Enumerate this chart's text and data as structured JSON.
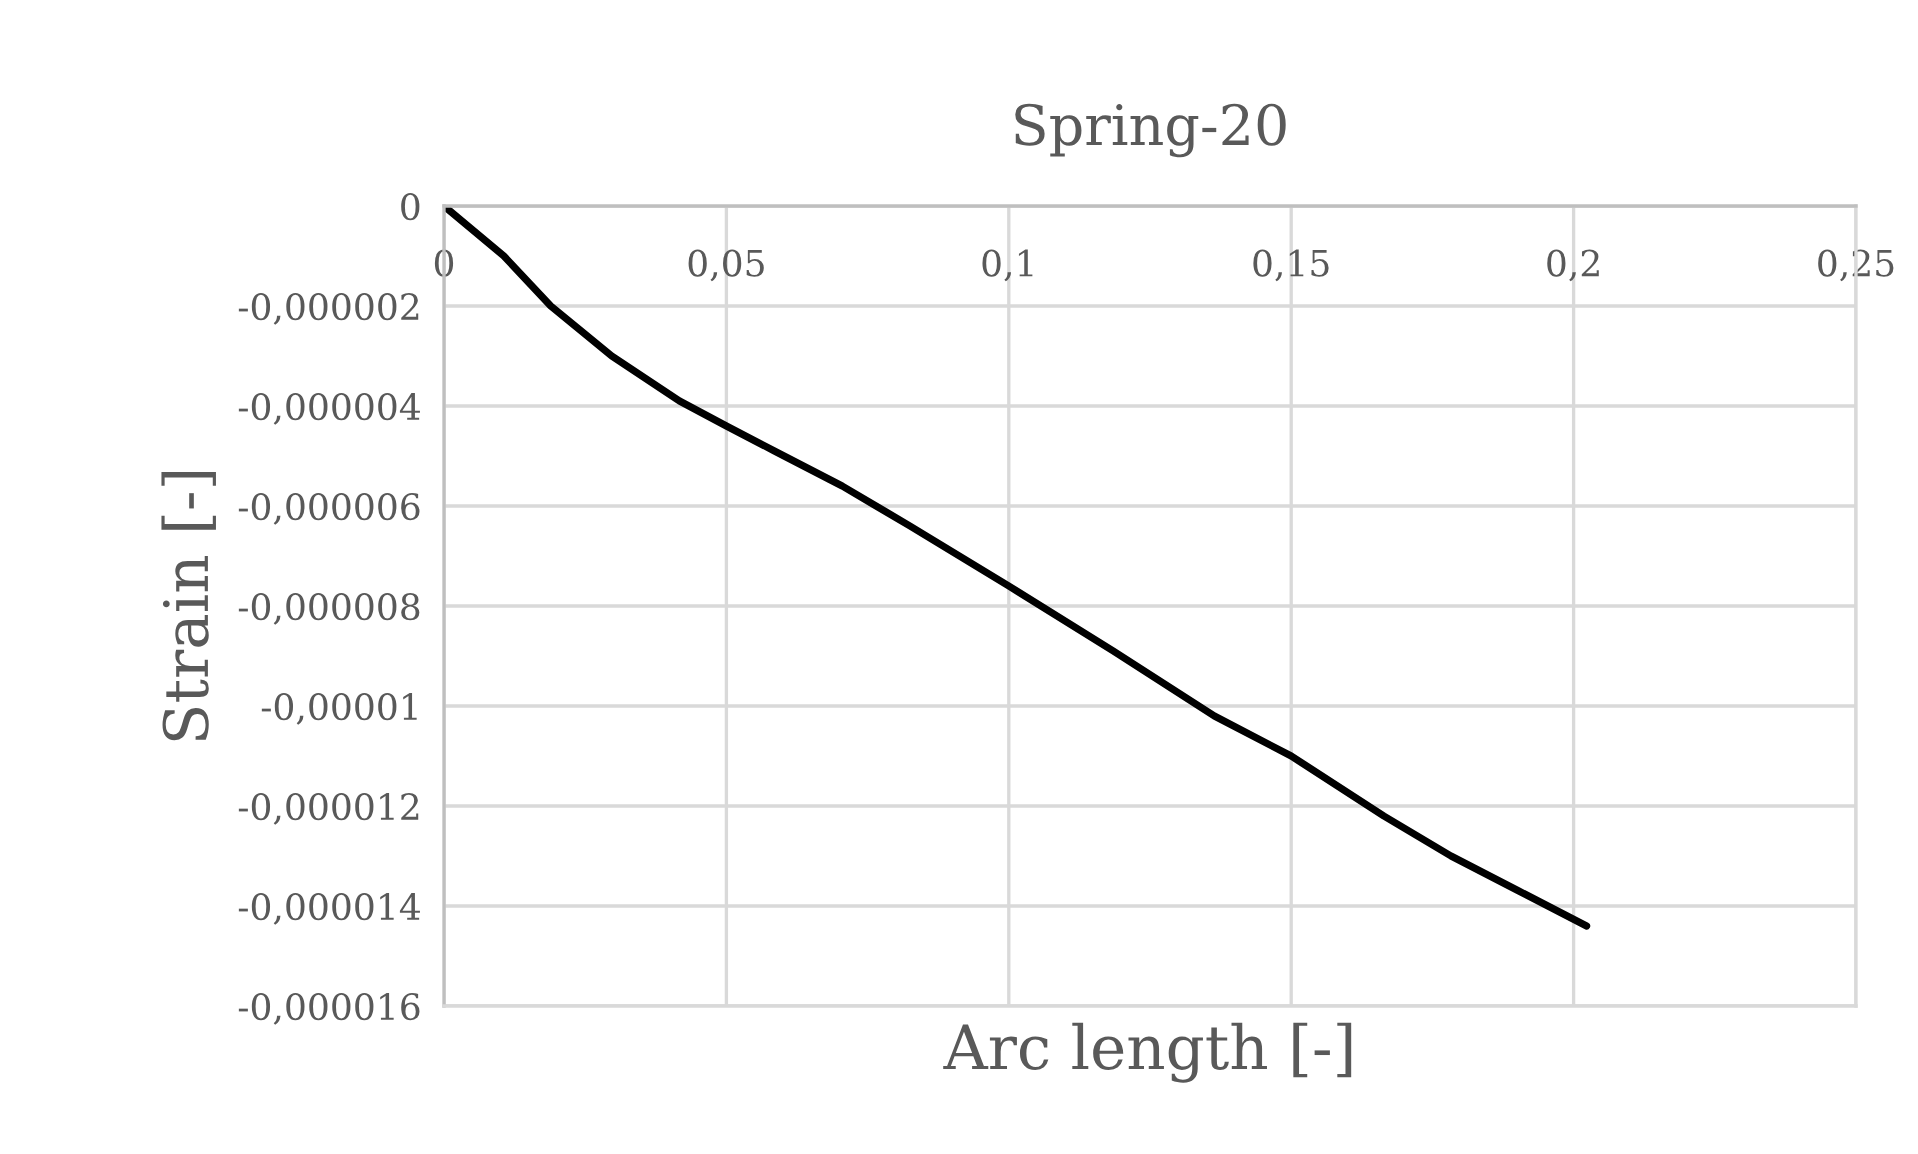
{
  "chart_data": {
    "type": "line",
    "title": "Spring-20",
    "xlabel": "Arc length [-]",
    "ylabel": "Strain [-]",
    "series": [
      {
        "color": "#000000",
        "x": [
          0,
          0.0106,
          0.0189,
          0.0297,
          0.0417,
          0.05,
          0.0585,
          0.0705,
          0.0825,
          0.1,
          0.1185,
          0.1364,
          0.15,
          0.1664,
          0.1783,
          0.1903,
          0.2023
        ],
        "values": [
          0,
          -1e-06,
          -2e-06,
          -3e-06,
          -3.9e-06,
          -4.4e-06,
          -4.9e-06,
          -5.6e-06,
          -6.4e-06,
          -7.6e-06,
          -8.9e-06,
          -1.02e-05,
          -1.1e-05,
          -1.22e-05,
          -1.3e-05,
          -1.37e-05,
          -1.44e-05
        ]
      }
    ],
    "xlim": [
      0,
      0.25
    ],
    "xticks": [
      {
        "value": 0,
        "label": "0"
      },
      {
        "value": 0.05,
        "label": "0,05"
      },
      {
        "value": 0.1,
        "label": "0,1"
      },
      {
        "value": 0.15,
        "label": "0,15"
      },
      {
        "value": 0.2,
        "label": "0,2"
      },
      {
        "value": 0.25,
        "label": "0,25"
      }
    ],
    "ylim": [
      -1.6e-05,
      0
    ],
    "yticks": [
      {
        "value": 0,
        "label": "0"
      },
      {
        "value": -2e-06,
        "label": "-0,000002"
      },
      {
        "value": -4e-06,
        "label": "-0,000004"
      },
      {
        "value": -6e-06,
        "label": "-0,000006"
      },
      {
        "value": -8e-06,
        "label": "-0,000008"
      },
      {
        "value": -1e-05,
        "label": "-0,00001"
      },
      {
        "value": -1.2e-05,
        "label": "-0,000012"
      },
      {
        "value": -1.4e-05,
        "label": "-0,000014"
      },
      {
        "value": -1.6e-05,
        "label": "-0,000016"
      }
    ],
    "grid": true,
    "legend": false,
    "marker": "none",
    "line_style": "solid"
  }
}
